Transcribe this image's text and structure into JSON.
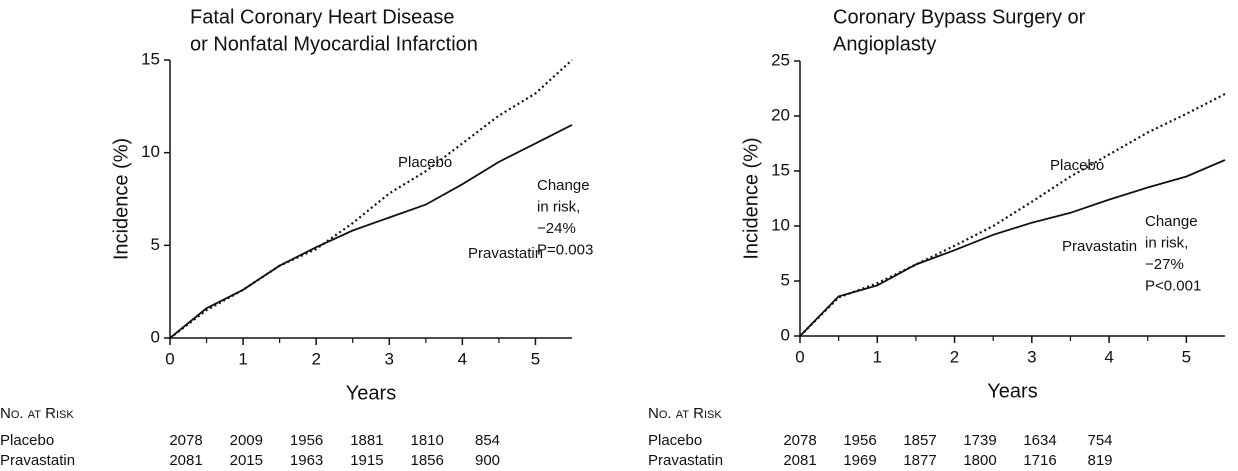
{
  "chart_data": [
    {
      "type": "line",
      "title": [
        "Fatal Coronary Heart Disease",
        "or Nonfatal Myocardial Infarction"
      ],
      "ylabel": "Incidence (%)",
      "xlabel": "Years",
      "x": [
        0,
        0.5,
        1,
        1.5,
        2,
        2.5,
        3,
        3.5,
        4,
        4.5,
        5,
        5.5
      ],
      "series": [
        {
          "name": "Placebo",
          "color": "#111111",
          "style": "dotted",
          "values": [
            0,
            1.5,
            2.6,
            3.9,
            4.8,
            6.2,
            7.8,
            9.0,
            10.5,
            12.0,
            13.2,
            15.0
          ]
        },
        {
          "name": "Pravastatin",
          "color": "#111111",
          "style": "solid",
          "values": [
            0,
            1.6,
            2.6,
            3.9,
            4.9,
            5.8,
            6.5,
            7.2,
            8.3,
            9.5,
            10.5,
            11.5
          ]
        }
      ],
      "xlim": [
        0,
        5.5
      ],
      "xticks": [
        0,
        1,
        2,
        3,
        4,
        5
      ],
      "xminorticks": [
        0.5,
        1.5,
        2.5,
        3.5,
        4.5
      ],
      "ylim": [
        0,
        15
      ],
      "yticks": [
        0,
        5,
        10,
        15
      ],
      "annotation": [
        "Change",
        "in risk,",
        "−24%",
        "P=0.003"
      ],
      "risk_table": {
        "title": "No. at Risk",
        "rows": [
          {
            "name": "Placebo",
            "values": [
              2078,
              2009,
              1956,
              1881,
              1810,
              854
            ]
          },
          {
            "name": "Pravastatin",
            "values": [
              2081,
              2015,
              1963,
              1915,
              1856,
              900
            ]
          }
        ]
      }
    },
    {
      "type": "line",
      "title": [
        "Coronary Bypass Surgery or",
        "Angioplasty"
      ],
      "ylabel": "Incidence (%)",
      "xlabel": "Years",
      "x": [
        0,
        0.5,
        1,
        1.5,
        2,
        2.5,
        3,
        3.5,
        4,
        4.5,
        5,
        5.5
      ],
      "series": [
        {
          "name": "Placebo",
          "color": "#111111",
          "style": "dotted",
          "values": [
            0,
            3.5,
            4.8,
            6.5,
            8.2,
            10.0,
            12.2,
            14.5,
            16.5,
            18.5,
            20.2,
            22.0
          ]
        },
        {
          "name": "Pravastatin",
          "color": "#111111",
          "style": "solid",
          "values": [
            0,
            3.6,
            4.6,
            6.5,
            7.8,
            9.2,
            10.3,
            11.2,
            12.4,
            13.5,
            14.5,
            16.0
          ]
        }
      ],
      "xlim": [
        0,
        5.5
      ],
      "xticks": [
        0,
        1,
        2,
        3,
        4,
        5
      ],
      "xminorticks": [
        0.5,
        1.5,
        2.5,
        3.5,
        4.5
      ],
      "ylim": [
        0,
        25
      ],
      "yticks": [
        0,
        5,
        10,
        15,
        20,
        25
      ],
      "annotation": [
        "Change",
        "in risk,",
        "−27%",
        "P<0.001"
      ],
      "risk_table": {
        "title": "No. at Risk",
        "rows": [
          {
            "name": "Placebo",
            "values": [
              2078,
              1956,
              1857,
              1739,
              1634,
              754
            ]
          },
          {
            "name": "Pravastatin",
            "values": [
              2081,
              1969,
              1877,
              1800,
              1716,
              819
            ]
          }
        ]
      }
    }
  ]
}
